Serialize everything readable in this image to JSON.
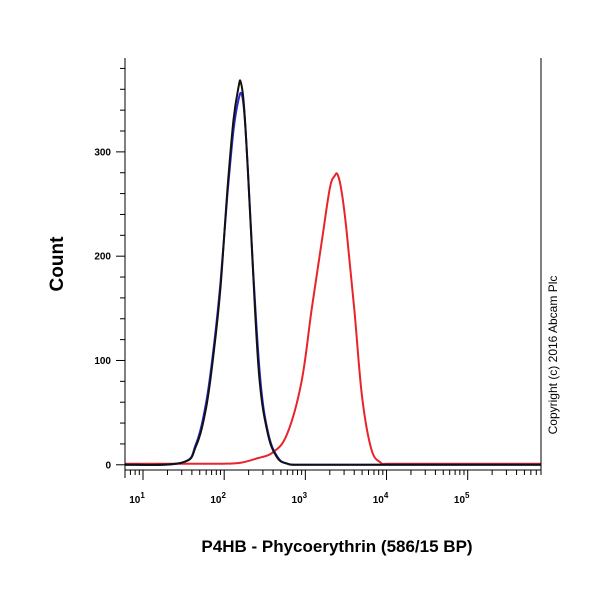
{
  "chart_data": {
    "type": "line",
    "xlabel": "P4HB - Phycoerythrin (586/15 BP)",
    "ylabel": "Count",
    "x_scale": "log",
    "xlim": [
      6,
      800000
    ],
    "ylim": [
      -5,
      390
    ],
    "x_ticks": [
      {
        "value": 10,
        "base": "10",
        "exp": "1"
      },
      {
        "value": 100,
        "base": "10",
        "exp": "2"
      },
      {
        "value": 1000,
        "base": "10",
        "exp": "3"
      },
      {
        "value": 10000,
        "base": "10",
        "exp": "4"
      },
      {
        "value": 100000,
        "base": "10",
        "exp": "5"
      }
    ],
    "y_ticks": [
      {
        "value": 0,
        "label": "0"
      },
      {
        "value": 100,
        "label": "100"
      },
      {
        "value": 200,
        "label": "200"
      },
      {
        "value": 300,
        "label": "300"
      }
    ],
    "grid": false,
    "series": [
      {
        "color": "#e8242a",
        "x": [
          6,
          60,
          100,
          160,
          250,
          400,
          600,
          900,
          1200,
          1600,
          2000,
          2300,
          2500,
          2800,
          3200,
          4000,
          5000,
          6500,
          8500,
          10000,
          15000,
          100000,
          800000
        ],
        "y": [
          1,
          1,
          1,
          2,
          6,
          12,
          30,
          80,
          150,
          215,
          265,
          277,
          278,
          262,
          226,
          150,
          65,
          15,
          2,
          1,
          1,
          1,
          1
        ]
      },
      {
        "color": "#2b2bd6",
        "x": [
          6,
          30,
          45,
          60,
          75,
          90,
          110,
          130,
          150,
          165,
          180,
          200,
          230,
          280,
          350,
          450,
          600,
          1000,
          10000,
          800000
        ],
        "y": [
          0,
          2,
          20,
          60,
          115,
          175,
          260,
          320,
          350,
          355,
          330,
          270,
          180,
          80,
          30,
          8,
          1,
          0,
          0,
          0
        ]
      },
      {
        "color": "#111111",
        "x": [
          6,
          30,
          45,
          60,
          75,
          90,
          110,
          130,
          150,
          160,
          175,
          195,
          225,
          270,
          340,
          440,
          600,
          1000,
          10000,
          800000
        ],
        "y": [
          0,
          2,
          18,
          55,
          110,
          170,
          265,
          330,
          362,
          367,
          345,
          285,
          190,
          85,
          32,
          8,
          1,
          0,
          0,
          0
        ]
      }
    ]
  },
  "copyright": "Copyright (c) 2016 Abcam Plc"
}
